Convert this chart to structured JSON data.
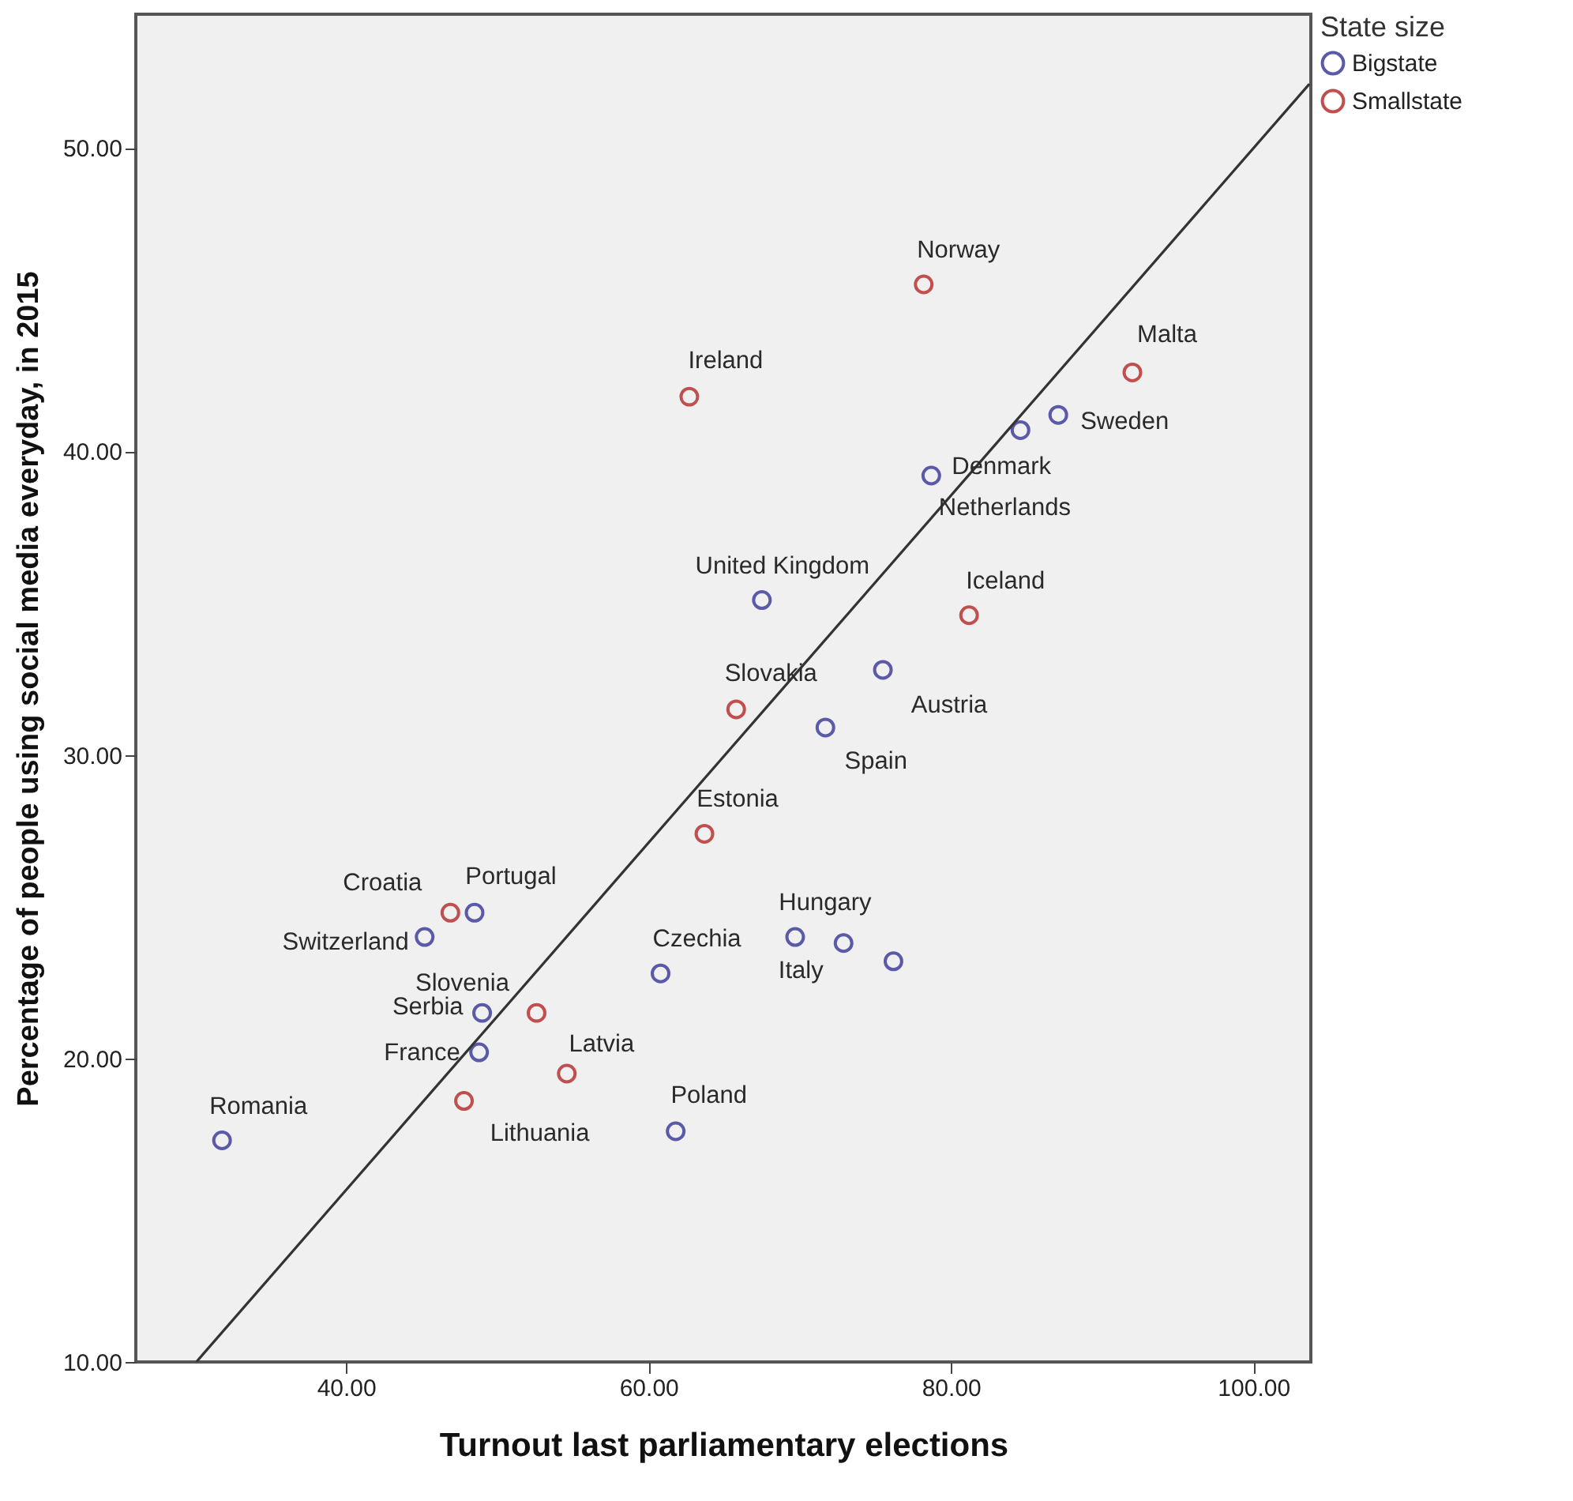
{
  "chart_data": {
    "type": "scatter",
    "xlabel": "Turnout last parliamentary elections",
    "ylabel": "Percentage of people using social media everyday, in 2015",
    "legend_title": "State size",
    "xlim": [
      26.1,
      103.8
    ],
    "ylim": [
      10,
      54.4
    ],
    "xticks": [
      {
        "value": 40,
        "label": "40.00"
      },
      {
        "value": 60,
        "label": "60.00"
      },
      {
        "value": 80,
        "label": "80.00"
      },
      {
        "value": 100,
        "label": "100.00"
      }
    ],
    "yticks": [
      {
        "value": 10,
        "label": "10.00"
      },
      {
        "value": 20,
        "label": "20.00"
      },
      {
        "value": 30,
        "label": "30.00"
      },
      {
        "value": 40,
        "label": "40.00"
      },
      {
        "value": 50,
        "label": "50.00"
      }
    ],
    "legend": "right",
    "series": [
      {
        "name": "Bigstate",
        "color": "#5a5aa8",
        "marker": "circle",
        "x": [
          67.5,
          71.7,
          87.1,
          78.7,
          84.6,
          75.5,
          48.5,
          45.2,
          60.8,
          69.7,
          72.9,
          76.2,
          49.0,
          48.8,
          61.8,
          31.8
        ],
        "values": [
          35.1,
          30.9,
          41.2,
          39.2,
          40.7,
          32.8,
          24.8,
          24.0,
          22.8,
          24.0,
          23.8,
          23.2,
          21.5,
          20.2,
          17.6,
          17.3
        ]
      },
      {
        "name": "Smallstate",
        "color": "#c05050",
        "marker": "circle",
        "x": [
          62.7,
          78.2,
          92.0,
          81.2,
          65.8,
          63.7,
          46.9,
          52.6,
          54.6,
          47.8
        ],
        "values": [
          41.8,
          45.5,
          42.6,
          34.6,
          31.5,
          27.4,
          24.8,
          21.5,
          19.5,
          18.6
        ]
      },
      {
        "type": "line",
        "color": "#333333",
        "x": [
          30.1,
          103.7
        ],
        "values": [
          10,
          52.1
        ]
      }
    ],
    "annotations": [
      {
        "text": "Ireland",
        "x": 62.7,
        "y": 41.8
      },
      {
        "text": "Norway",
        "x": 78.2,
        "y": 45.5
      },
      {
        "text": "Malta",
        "x": 92.0,
        "y": 42.6
      },
      {
        "text": "Sweden",
        "x": 87.1,
        "y": 41.2
      },
      {
        "text": "Denmark",
        "x": 78.7,
        "y": 39.2
      },
      {
        "text": "Netherlands",
        "x": 84.6,
        "y": 40.7
      },
      {
        "text": "United Kingdom",
        "x": 67.5,
        "y": 35.1
      },
      {
        "text": "Iceland",
        "x": 81.2,
        "y": 34.6
      },
      {
        "text": "Slovakia",
        "x": 65.8,
        "y": 31.5
      },
      {
        "text": "Austria",
        "x": 75.5,
        "y": 32.8
      },
      {
        "text": "Spain",
        "x": 71.7,
        "y": 30.9
      },
      {
        "text": "Estonia",
        "x": 63.7,
        "y": 27.4
      },
      {
        "text": "Croatia",
        "x": 46.9,
        "y": 24.8
      },
      {
        "text": "Portugal",
        "x": 48.5,
        "y": 24.8
      },
      {
        "text": "Switzerland",
        "x": 45.2,
        "y": 24.0
      },
      {
        "text": "Czechia",
        "x": 60.8,
        "y": 22.8
      },
      {
        "text": "Hungary",
        "x": 69.7,
        "y": 24.0
      },
      {
        "text": "Italy",
        "x": 72.9,
        "y": 23.8
      },
      {
        "text": "Serbia",
        "x": 49.0,
        "y": 21.5
      },
      {
        "text": "Slovenia",
        "x": 52.6,
        "y": 21.5
      },
      {
        "text": "France",
        "x": 48.8,
        "y": 20.2
      },
      {
        "text": "Latvia",
        "x": 54.6,
        "y": 19.5
      },
      {
        "text": "Lithuania",
        "x": 47.8,
        "y": 18.6
      },
      {
        "text": "Poland",
        "x": 61.8,
        "y": 17.6
      },
      {
        "text": "Romania",
        "x": 31.8,
        "y": 17.3
      }
    ]
  }
}
